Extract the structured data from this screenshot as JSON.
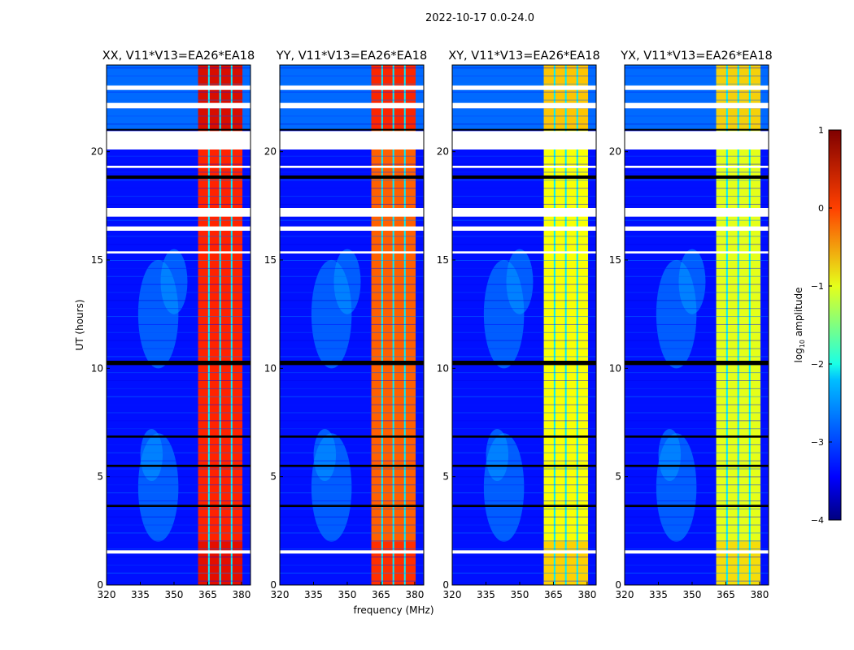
{
  "chart_data": {
    "type": "heatmap",
    "suptitle": "2022-10-17 0.0-24.0",
    "xlabel": "frequency (MHz)",
    "ylabel": "UT (hours)",
    "xlim": [
      320,
      384
    ],
    "ylim": [
      0,
      24
    ],
    "xticks": [
      "320",
      "335",
      "350",
      "365",
      "380"
    ],
    "yticks": [
      "0",
      "5",
      "10",
      "15",
      "20"
    ],
    "colorbar": {
      "label_main": "log",
      "label_sub": "10",
      "label_rest": " amplitude",
      "range": [
        -4,
        1
      ],
      "ticks": [
        "1",
        "0",
        "−1",
        "−2",
        "−3",
        "−4"
      ],
      "colormap": "jet"
    },
    "bright_band_mhz": [
      360.7,
      380.4
    ],
    "subband_edges_mhz": [
      365.5,
      370.5,
      375.6
    ],
    "flagged_hours": [
      [
        22.85,
        23.05
      ],
      [
        22.0,
        22.25
      ],
      [
        20.1,
        20.95
      ],
      [
        19.25,
        19.35
      ],
      [
        17.0,
        17.4
      ],
      [
        16.35,
        16.55
      ],
      [
        15.3,
        15.4
      ],
      [
        1.45,
        1.6
      ]
    ],
    "dark_hours": [
      [
        18.75,
        18.9
      ],
      [
        10.15,
        10.35
      ],
      [
        6.8,
        6.9
      ],
      [
        5.45,
        5.55
      ],
      [
        3.6,
        3.7
      ],
      [
        21.0,
        21.05
      ]
    ],
    "panels": [
      {
        "title": "XX, V11*V13=EA26*EA18",
        "band_level": 0.2,
        "background_level": -3.3
      },
      {
        "title": "YY, V11*V13=EA26*EA18",
        "band_level": -0.1,
        "background_level": -3.3
      },
      {
        "title": "XY, V11*V13=EA26*EA18",
        "band_level": -0.9,
        "background_level": -3.3
      },
      {
        "title": "YX, V11*V13=EA26*EA18",
        "band_level": -1.0,
        "background_level": -3.3
      }
    ]
  }
}
